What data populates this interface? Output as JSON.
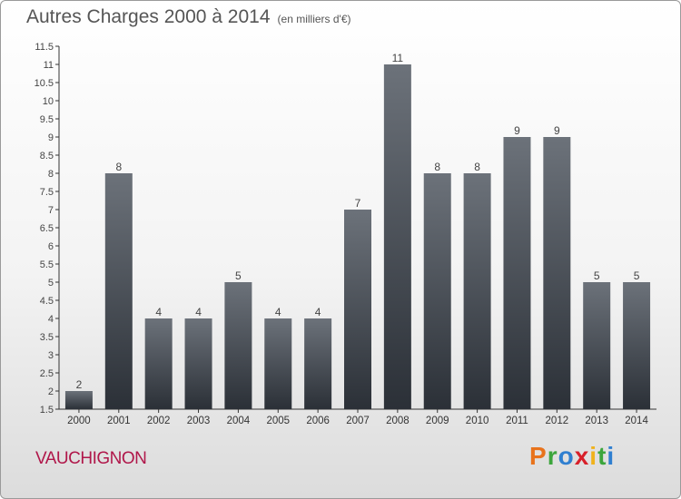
{
  "header": {
    "title": "Autres Charges 2000 à 2014",
    "unit": "(en milliers d'€)"
  },
  "footer": {
    "town": "VAUCHIGNON",
    "brand": [
      "P",
      "r",
      "o",
      "x",
      "i",
      "t",
      "i"
    ],
    "brand_colors": [
      "#e8731c",
      "#3ca53c",
      "#2f7fd0",
      "#d8202a",
      "#f0b21c",
      "#3ca53c",
      "#2f7fd0"
    ]
  },
  "chart_data": {
    "type": "bar",
    "title": "Autres Charges 2000 à 2014",
    "categories": [
      "2000",
      "2001",
      "2002",
      "2003",
      "2004",
      "2005",
      "2006",
      "2007",
      "2008",
      "2009",
      "2010",
      "2011",
      "2012",
      "2013",
      "2014"
    ],
    "values": [
      2,
      8,
      4,
      4,
      5,
      4,
      4,
      7,
      11,
      8,
      8,
      9,
      9,
      5,
      5
    ],
    "value_labels": [
      "2",
      "8",
      "4",
      "4",
      "5",
      "4",
      "4",
      "7",
      "11",
      "8",
      "8",
      "9",
      "9",
      "5",
      "5"
    ],
    "ylim": [
      1.5,
      11.5
    ],
    "yticks": [
      "1.5",
      "2",
      "2.5",
      "3",
      "3.5",
      "4",
      "4.5",
      "5",
      "5.5",
      "6",
      "6.5",
      "7",
      "7.5",
      "8",
      "8.5",
      "9",
      "9.5",
      "10",
      "10.5",
      "11",
      "11.5"
    ],
    "grid": false,
    "bar_color": "#3f454d"
  }
}
